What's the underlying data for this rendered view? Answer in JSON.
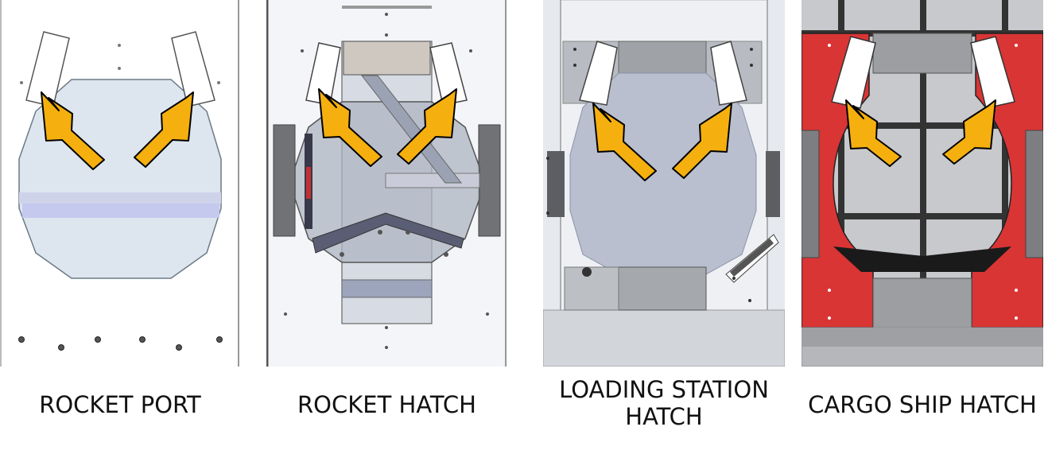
{
  "panels": [
    {
      "id": "rocket-port",
      "caption": "ROCKET PORT"
    },
    {
      "id": "rocket-hatch",
      "caption": "ROCKET HATCH"
    },
    {
      "id": "loading-station-hatch",
      "caption": "LOADING STATION\nHATCH"
    },
    {
      "id": "cargo-ship-hatch",
      "caption": "CARGO SHIP HATCH"
    }
  ],
  "colors": {
    "arrow_fill": "#F5B00F",
    "arrow_stroke": "#000000",
    "cargo_wall": "#D93535",
    "grid_line": "#333333"
  }
}
